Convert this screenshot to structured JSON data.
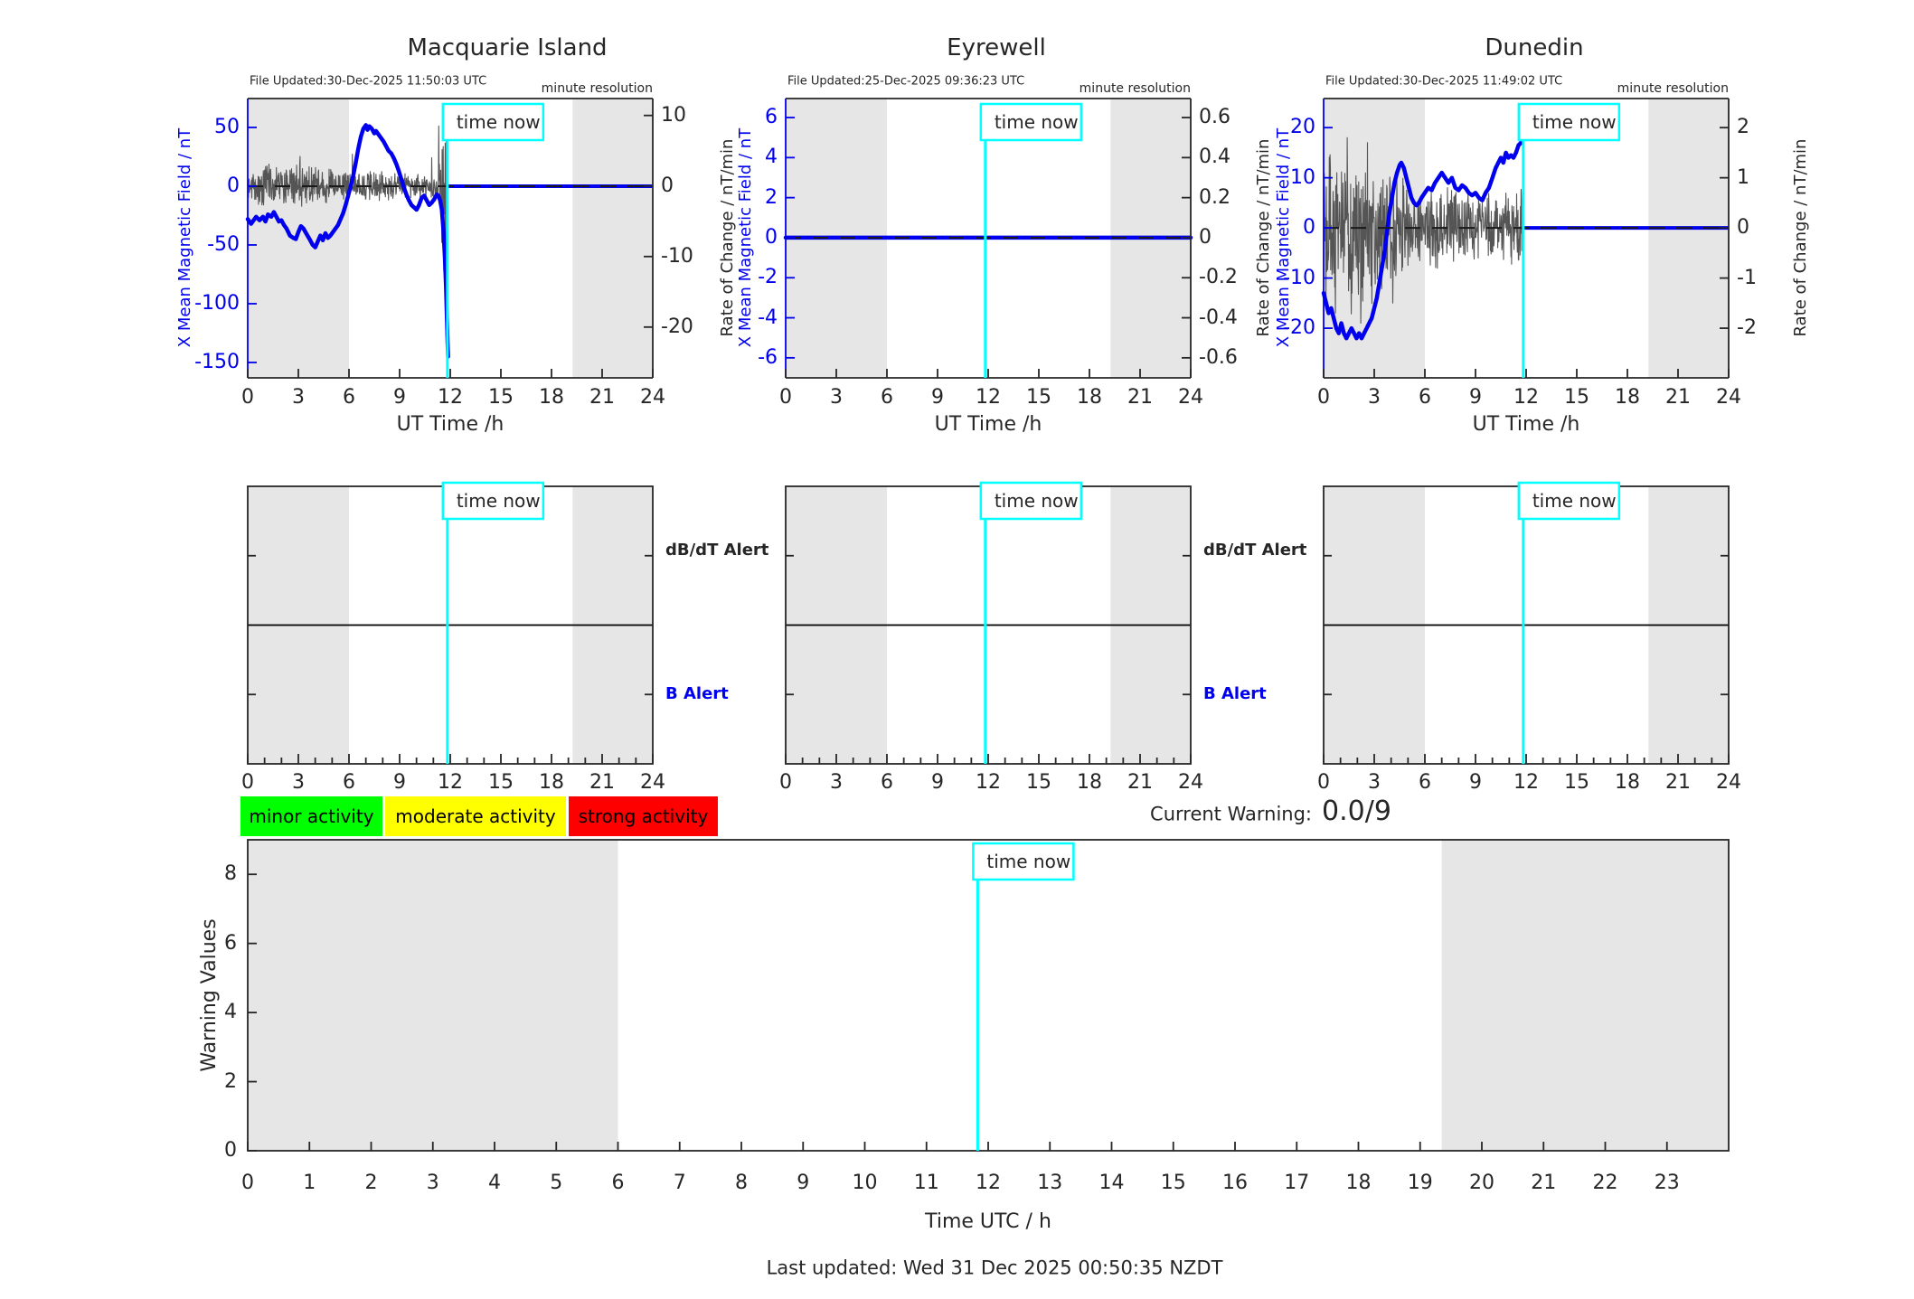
{
  "page": {
    "time_now_label": "time now",
    "current_warning_label": "Current Warning:",
    "current_warning_value": "0.0/9",
    "last_updated": "Last updated: Wed 31 Dec 2025 00:50:35 NZDT",
    "time_utc_axis_label": "Time UTC / h",
    "warning_values_axis_label": "Warning Values"
  },
  "colors": {
    "field_blue": "#0000ee",
    "noise_gray": "#555555",
    "night_shade": "#e6e6e6",
    "time_now_cyan": "#00ffff",
    "axis_dark": "#262626",
    "dashed_zero": "#1a1a1a",
    "legend_green": "#00ff00",
    "legend_yellow": "#ffff00",
    "legend_red": "#ff0000"
  },
  "legend": [
    {
      "label": "minor activity",
      "color_role": "legend_green"
    },
    {
      "label": "moderate activity",
      "color_role": "legend_yellow"
    },
    {
      "label": "strong activity",
      "color_role": "legend_red"
    }
  ],
  "chart_data": [
    {
      "type": "line",
      "panel": "station",
      "title": "Macquarie Island",
      "file_updated": "File Updated:30-Dec-2025 11:50:03 UTC",
      "resolution_note": "minute resolution",
      "xlabel": "UT Time /h",
      "xlim": [
        0,
        24
      ],
      "x_ticks": [
        0,
        3,
        6,
        9,
        12,
        15,
        18,
        21,
        24
      ],
      "left_axis": {
        "label": "X Mean Magnetic Field / nT",
        "ticks": [
          50,
          0,
          -50,
          -100,
          -150
        ],
        "lim": [
          -163.1,
          74.6
        ]
      },
      "right_axis": {
        "label": "Rate of Change / nT/min",
        "ticks": [
          10,
          0,
          -10,
          -20
        ],
        "lim": [
          -27.2,
          12.4
        ]
      },
      "night_shading": [
        [
          0,
          6
        ],
        [
          19.25,
          24
        ]
      ],
      "time_now": 11.83,
      "field_series": [
        [
          0,
          -28
        ],
        [
          0.2,
          -32
        ],
        [
          0.35,
          -29
        ],
        [
          0.5,
          -26
        ],
        [
          0.7,
          -29
        ],
        [
          0.9,
          -26
        ],
        [
          1.05,
          -30
        ],
        [
          1.2,
          -24
        ],
        [
          1.4,
          -26
        ],
        [
          1.55,
          -22
        ],
        [
          1.7,
          -26
        ],
        [
          1.85,
          -30
        ],
        [
          2.0,
          -29
        ],
        [
          2.15,
          -33
        ],
        [
          2.3,
          -36
        ],
        [
          2.5,
          -42
        ],
        [
          2.7,
          -44
        ],
        [
          2.85,
          -45
        ],
        [
          3.0,
          -39
        ],
        [
          3.15,
          -34
        ],
        [
          3.3,
          -36
        ],
        [
          3.5,
          -41
        ],
        [
          3.7,
          -46
        ],
        [
          3.85,
          -50
        ],
        [
          4.0,
          -52
        ],
        [
          4.15,
          -47
        ],
        [
          4.3,
          -42
        ],
        [
          4.45,
          -46
        ],
        [
          4.6,
          -40
        ],
        [
          4.75,
          -44
        ],
        [
          4.9,
          -42
        ],
        [
          5.05,
          -39
        ],
        [
          5.2,
          -36
        ],
        [
          5.35,
          -33
        ],
        [
          5.5,
          -28
        ],
        [
          5.65,
          -23
        ],
        [
          5.8,
          -16
        ],
        [
          5.95,
          -8
        ],
        [
          6.1,
          0
        ],
        [
          6.25,
          9
        ],
        [
          6.4,
          20
        ],
        [
          6.55,
          32
        ],
        [
          6.7,
          42
        ],
        [
          6.85,
          49
        ],
        [
          7.0,
          52
        ],
        [
          7.1,
          48
        ],
        [
          7.2,
          51
        ],
        [
          7.35,
          49
        ],
        [
          7.5,
          45
        ],
        [
          7.6,
          47
        ],
        [
          7.75,
          44
        ],
        [
          7.9,
          41
        ],
        [
          8.05,
          38
        ],
        [
          8.2,
          34
        ],
        [
          8.35,
          30
        ],
        [
          8.5,
          28
        ],
        [
          8.65,
          24
        ],
        [
          8.8,
          19
        ],
        [
          8.95,
          13
        ],
        [
          9.1,
          6
        ],
        [
          9.25,
          -1
        ],
        [
          9.4,
          -7
        ],
        [
          9.55,
          -12
        ],
        [
          9.7,
          -16
        ],
        [
          9.85,
          -18
        ],
        [
          10.0,
          -20
        ],
        [
          10.15,
          -16
        ],
        [
          10.3,
          -10
        ],
        [
          10.45,
          -8
        ],
        [
          10.6,
          -12
        ],
        [
          10.75,
          -16
        ],
        [
          10.9,
          -14
        ],
        [
          11.05,
          -11
        ],
        [
          11.2,
          -7
        ],
        [
          11.3,
          -8
        ],
        [
          11.4,
          -12
        ],
        [
          11.5,
          -20
        ],
        [
          11.6,
          -38
        ],
        [
          11.68,
          -60
        ],
        [
          11.75,
          -85
        ],
        [
          11.8,
          -112
        ],
        [
          11.84,
          -132
        ],
        [
          11.87,
          -145
        ]
      ],
      "forecast_zero_segment": [
        11.9,
        24
      ],
      "rate_noise": {
        "t_end": 11.85,
        "seed": 42,
        "envelope": [
          [
            0,
            3.0
          ],
          [
            1,
            3.2
          ],
          [
            2,
            3.0
          ],
          [
            3,
            3.4
          ],
          [
            4,
            3.0
          ],
          [
            5,
            2.8
          ],
          [
            6,
            2.6
          ],
          [
            6.5,
            2.4
          ],
          [
            7,
            2.2
          ],
          [
            7.5,
            2.6
          ],
          [
            8,
            2.4
          ],
          [
            8.5,
            2.2
          ],
          [
            9,
            2.0
          ],
          [
            9.5,
            2.2
          ],
          [
            10,
            2.0
          ],
          [
            10.5,
            2.2
          ],
          [
            11,
            2.4
          ],
          [
            11.2,
            3.5
          ],
          [
            11.4,
            5
          ],
          [
            11.6,
            8
          ],
          [
            11.75,
            12
          ],
          [
            11.85,
            15
          ]
        ],
        "spikes": [
          [
            3.1,
            4.2
          ],
          [
            6.2,
            4.5
          ],
          [
            10.9,
            4.0
          ],
          [
            11.32,
            8.5
          ],
          [
            11.5,
            -8
          ],
          [
            11.62,
            -12
          ],
          [
            11.72,
            -16
          ],
          [
            11.78,
            -18
          ],
          [
            11.82,
            -13
          ]
        ]
      }
    },
    {
      "type": "line",
      "panel": "station",
      "title": "Eyrewell",
      "file_updated": "File Updated:25-Dec-2025 09:36:23 UTC",
      "resolution_note": "minute resolution",
      "xlabel": "UT Time /h",
      "xlim": [
        0,
        24
      ],
      "x_ticks": [
        0,
        3,
        6,
        9,
        12,
        15,
        18,
        21,
        24
      ],
      "left_axis": {
        "label": "X Mean Magnetic Field / nT",
        "ticks": [
          6,
          4,
          2,
          0,
          -2,
          -4,
          -6
        ],
        "lim": [
          -7.0,
          6.95
        ]
      },
      "right_axis": {
        "label": "Rate of Change / nT/min",
        "ticks": [
          0.6,
          0.4,
          0.2,
          0,
          -0.2,
          -0.4,
          -0.6
        ],
        "lim": [
          -0.7,
          0.695
        ]
      },
      "night_shading": [
        [
          0,
          6
        ],
        [
          19.25,
          24
        ]
      ],
      "time_now": 11.83,
      "field_series": [
        [
          0,
          0
        ],
        [
          24,
          0
        ]
      ],
      "forecast_zero_segment": null,
      "rate_noise": null
    },
    {
      "type": "line",
      "panel": "station",
      "title": "Dunedin",
      "file_updated": "File Updated:30-Dec-2025 11:49:02 UTC",
      "resolution_note": "minute resolution",
      "xlabel": "UT Time /h",
      "xlim": [
        0,
        24
      ],
      "x_ticks": [
        0,
        3,
        6,
        9,
        12,
        15,
        18,
        21,
        24
      ],
      "left_axis": {
        "label": "X Mean Magnetic Field / nT",
        "ticks": [
          20,
          10,
          0,
          -10,
          -20
        ],
        "lim": [
          -29.9,
          25.8
        ]
      },
      "right_axis": {
        "label": "Rate of Change / nT/min",
        "ticks": [
          2,
          1,
          0,
          -1,
          -2
        ],
        "lim": [
          -2.99,
          2.58
        ]
      },
      "night_shading": [
        [
          0,
          6
        ],
        [
          19.25,
          24
        ]
      ],
      "time_now": 11.83,
      "field_series": [
        [
          0,
          -13
        ],
        [
          0.15,
          -15
        ],
        [
          0.3,
          -17
        ],
        [
          0.45,
          -16
        ],
        [
          0.6,
          -18
        ],
        [
          0.75,
          -20
        ],
        [
          0.9,
          -21
        ],
        [
          1.05,
          -19
        ],
        [
          1.2,
          -21
        ],
        [
          1.35,
          -22
        ],
        [
          1.5,
          -21
        ],
        [
          1.65,
          -20
        ],
        [
          1.8,
          -21
        ],
        [
          1.95,
          -22
        ],
        [
          2.1,
          -21
        ],
        [
          2.25,
          -22
        ],
        [
          2.4,
          -21
        ],
        [
          2.55,
          -20
        ],
        [
          2.7,
          -19
        ],
        [
          2.85,
          -18
        ],
        [
          3.0,
          -16
        ],
        [
          3.15,
          -14
        ],
        [
          3.3,
          -11
        ],
        [
          3.45,
          -8
        ],
        [
          3.6,
          -5
        ],
        [
          3.75,
          -1
        ],
        [
          3.9,
          3
        ],
        [
          4.05,
          6
        ],
        [
          4.2,
          9
        ],
        [
          4.35,
          11
        ],
        [
          4.5,
          12.5
        ],
        [
          4.6,
          13
        ],
        [
          4.75,
          12
        ],
        [
          4.9,
          10
        ],
        [
          5.05,
          8
        ],
        [
          5.2,
          6
        ],
        [
          5.35,
          5
        ],
        [
          5.5,
          4.5
        ],
        [
          5.65,
          5
        ],
        [
          5.8,
          6
        ],
        [
          6.0,
          7
        ],
        [
          6.2,
          8
        ],
        [
          6.4,
          7.5
        ],
        [
          6.6,
          9
        ],
        [
          6.8,
          10
        ],
        [
          7.0,
          11
        ],
        [
          7.2,
          10
        ],
        [
          7.4,
          9
        ],
        [
          7.6,
          10
        ],
        [
          7.8,
          8
        ],
        [
          8.0,
          7.5
        ],
        [
          8.2,
          8.5
        ],
        [
          8.4,
          8
        ],
        [
          8.6,
          7
        ],
        [
          8.8,
          6.5
        ],
        [
          9.0,
          7
        ],
        [
          9.2,
          6
        ],
        [
          9.4,
          5.5
        ],
        [
          9.6,
          7
        ],
        [
          9.8,
          8
        ],
        [
          10.0,
          10
        ],
        [
          10.2,
          12
        ],
        [
          10.35,
          13
        ],
        [
          10.5,
          14
        ],
        [
          10.65,
          13
        ],
        [
          10.8,
          15
        ],
        [
          10.95,
          14
        ],
        [
          11.1,
          14.5
        ],
        [
          11.25,
          14
        ],
        [
          11.4,
          15
        ],
        [
          11.55,
          16.5
        ],
        [
          11.7,
          17
        ],
        [
          11.8,
          18.5
        ],
        [
          11.87,
          19
        ]
      ],
      "forecast_zero_segment": [
        11.9,
        24
      ],
      "rate_noise": {
        "t_end": 11.83,
        "seed": 1234,
        "envelope": [
          [
            0,
            1.5
          ],
          [
            0.5,
            1.7
          ],
          [
            1,
            1.6
          ],
          [
            1.5,
            1.8
          ],
          [
            2,
            1.7
          ],
          [
            2.5,
            1.6
          ],
          [
            3,
            1.5
          ],
          [
            3.5,
            1.4
          ],
          [
            4,
            1.2
          ],
          [
            4.5,
            1.1
          ],
          [
            5,
            1.0
          ],
          [
            5.5,
            0.9
          ],
          [
            6,
            0.85
          ],
          [
            7,
            0.8
          ],
          [
            7.5,
            0.9
          ],
          [
            8,
            0.8
          ],
          [
            8.5,
            0.75
          ],
          [
            9,
            0.8
          ],
          [
            9.5,
            0.7
          ],
          [
            10,
            0.75
          ],
          [
            10.5,
            0.7
          ],
          [
            11,
            0.8
          ],
          [
            11.5,
            0.85
          ],
          [
            11.83,
            0.9
          ]
        ],
        "spikes": [
          [
            0.7,
            -1.7
          ],
          [
            1.4,
            1.8
          ],
          [
            2.2,
            -1.9
          ],
          [
            2.6,
            1.7
          ],
          [
            4.1,
            -1.5
          ]
        ]
      }
    },
    {
      "type": "alert-panel",
      "station": "Macquarie Island",
      "xlim": [
        0,
        24
      ],
      "x_ticks": [
        0,
        3,
        6,
        9,
        12,
        15,
        18,
        21,
        24
      ],
      "night_shading": [
        [
          0,
          6
        ],
        [
          19.25,
          24
        ]
      ],
      "time_now": 11.83,
      "right_labels": [
        {
          "text": "dB/dT Alert",
          "color_role": "axis_dark"
        },
        {
          "text": "B Alert",
          "color_role": "field_blue"
        }
      ]
    },
    {
      "type": "alert-panel",
      "station": "Eyrewell",
      "xlim": [
        0,
        24
      ],
      "x_ticks": [
        0,
        3,
        6,
        9,
        12,
        15,
        18,
        21,
        24
      ],
      "night_shading": [
        [
          0,
          6
        ],
        [
          19.25,
          24
        ]
      ],
      "time_now": 11.83,
      "right_labels": [
        {
          "text": "dB/dT Alert",
          "color_role": "axis_dark"
        },
        {
          "text": "B Alert",
          "color_role": "field_blue"
        }
      ]
    },
    {
      "type": "alert-panel",
      "station": "Dunedin",
      "xlim": [
        0,
        24
      ],
      "x_ticks": [
        0,
        3,
        6,
        9,
        12,
        15,
        18,
        21,
        24
      ],
      "night_shading": [
        [
          0,
          6
        ],
        [
          19.25,
          24
        ]
      ],
      "time_now": 11.83,
      "right_labels": []
    },
    {
      "type": "line",
      "panel": "warning",
      "ylabel": "Warning Values",
      "xlabel": "Time UTC / h",
      "y_ticks": [
        0,
        2,
        4,
        6,
        8
      ],
      "ylim": [
        0,
        9
      ],
      "xlim": [
        0,
        24
      ],
      "x_ticks": [
        0,
        1,
        2,
        3,
        4,
        5,
        6,
        7,
        8,
        9,
        10,
        11,
        12,
        13,
        14,
        15,
        16,
        17,
        18,
        19,
        20,
        21,
        22,
        23
      ],
      "night_shading": [
        [
          0,
          6
        ],
        [
          19.35,
          24
        ]
      ],
      "time_now": 11.83,
      "series": []
    }
  ]
}
